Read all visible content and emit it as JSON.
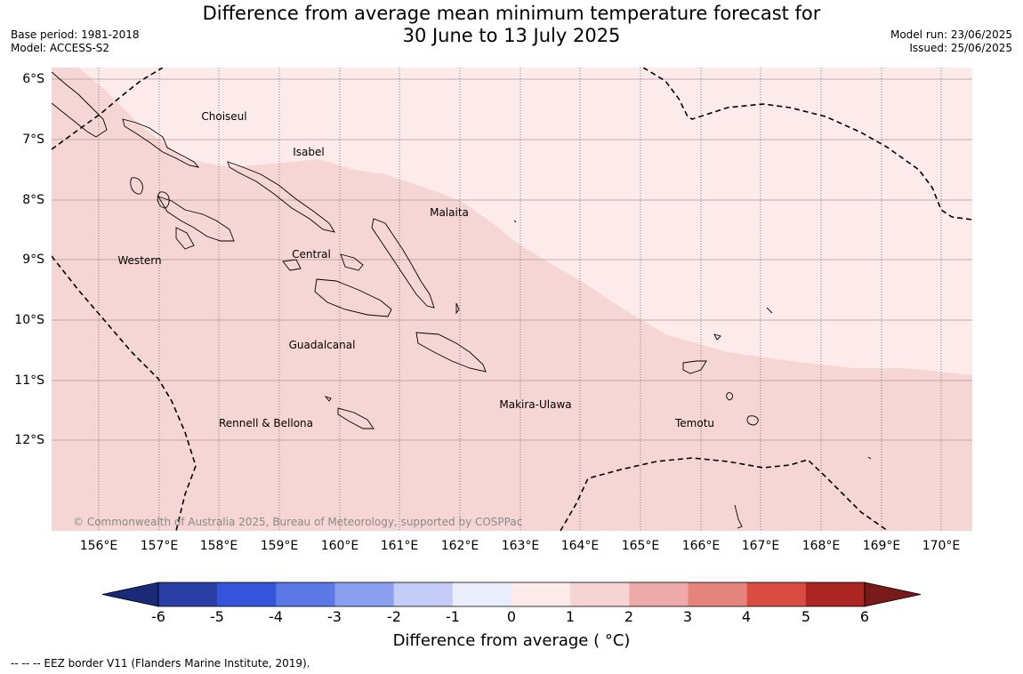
{
  "title_line1": "Difference from average mean minimum temperature forecast for",
  "title_line2": "30 June to 13 July 2025",
  "base_period": "Base period: 1981-2018",
  "model": "Model: ACCESS-S2",
  "model_run": "Model run: 23/06/2025",
  "issued": "Issued: 25/06/2025",
  "lat_labels": [
    "6°S",
    "7°S",
    "8°S",
    "9°S",
    "10°S",
    "11°S",
    "12°S"
  ],
  "lon_labels": [
    "156°E",
    "157°E",
    "158°E",
    "159°E",
    "160°E",
    "161°E",
    "162°E",
    "163°E",
    "164°E",
    "165°E",
    "166°E",
    "167°E",
    "168°E",
    "169°E",
    "170°E"
  ],
  "regions": {
    "choiseul": "Choiseul",
    "isabel": "Isabel",
    "malaita": "Malaita",
    "western": "Western",
    "central": "Central",
    "guadalcanal": "Guadalcanal",
    "makira": "Makira-Ulawa",
    "rennell": "Rennell & Bellona",
    "temotu": "Temotu"
  },
  "copyright": "© Commonwealth of Australia 2025, Bureau of Meteorology, supported by COSPPac",
  "colorbar": {
    "ticks": [
      "-6",
      "-5",
      "-4",
      "-3",
      "-2",
      "-1",
      "0",
      "1",
      "2",
      "3",
      "4",
      "5",
      "6"
    ],
    "colors": [
      "#2a3fa6",
      "#3354db",
      "#5c78e6",
      "#8a9ff0",
      "#c3cbf6",
      "#eaedfc",
      "#fcebea",
      "#f5d4d3",
      "#eeaaa8",
      "#e5847d",
      "#da4b42",
      "#ac2622"
    ],
    "under_color": "#1b2a78",
    "over_color": "#7a1a18",
    "label": "Difference from average ( °C)"
  },
  "fill_colors": {
    "band_0_1": "#fcebea",
    "band_1_2": "#f5d6d5"
  },
  "eez_note": "-- -- -- EEZ border V11 (Flanders Marine Institute, 2019)."
}
